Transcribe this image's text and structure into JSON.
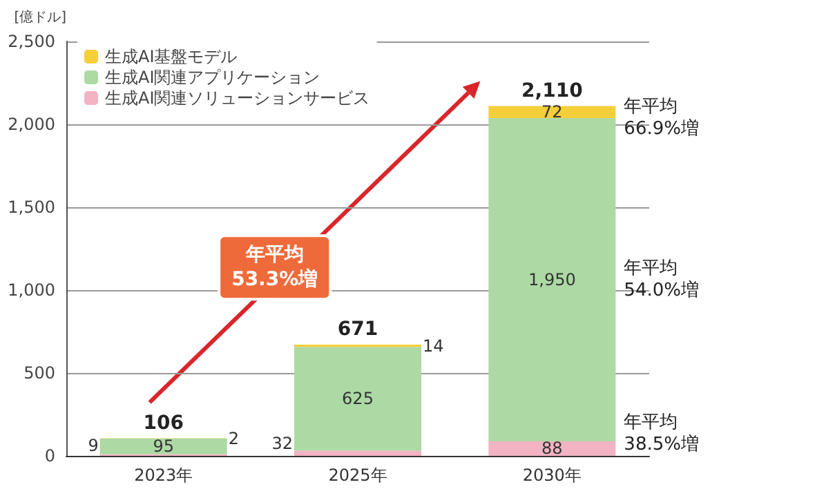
{
  "chart_data": {
    "type": "bar",
    "stacked": true,
    "ylabel": "[億ドル]",
    "categories": [
      "2023年",
      "2025年",
      "2030年"
    ],
    "series": [
      {
        "name": "生成AI関連ソリューションサービス",
        "color": "#f2b3c2",
        "values": [
          9,
          32,
          88
        ]
      },
      {
        "name": "生成AI関連アプリケーション",
        "color": "#acd9a4",
        "values": [
          95,
          625,
          1950
        ],
        "value_labels": [
          "95",
          "625",
          "1,950"
        ]
      },
      {
        "name": "生成AI基盤モデル",
        "color": "#f5cf3a",
        "values": [
          2,
          14,
          72
        ]
      }
    ],
    "data_labels": true,
    "totals": [
      "106",
      "671",
      "2,110"
    ],
    "ylim": [
      0,
      2500
    ],
    "yticks": [
      0,
      {
        "value": 500,
        "label": "500"
      },
      {
        "value": 1000,
        "label": "1,000"
      },
      {
        "value": 1500,
        "label": "1,500"
      },
      {
        "value": 2000,
        "label": "2,000"
      },
      {
        "value": 2500,
        "label": "2,500"
      }
    ],
    "grid": "y",
    "legend": "top left",
    "annotations": [
      "年平均\n53.3%増",
      "年平均\n66.9%増",
      "年平均\n54.0%増",
      "年平均\n38.5%増"
    ]
  }
}
